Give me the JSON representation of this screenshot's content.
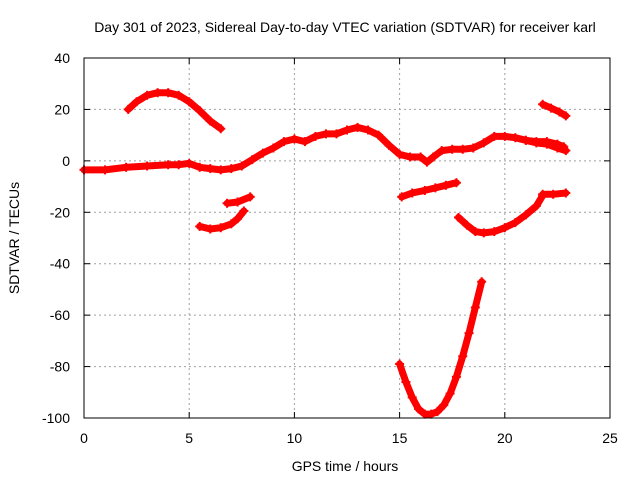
{
  "chart_data": {
    "type": "line",
    "title": "Day 301 of 2023, Sidereal Day-to-day VTEC variation (SDTVAR) for receiver karl",
    "xlabel": "GPS time / hours",
    "ylabel": "SDTVAR / TECUs",
    "xlim": [
      0,
      25
    ],
    "ylim": [
      -100,
      40
    ],
    "xticks": [
      0,
      5,
      10,
      15,
      20,
      25
    ],
    "yticks": [
      -100,
      -80,
      -60,
      -40,
      -20,
      0,
      20,
      40
    ],
    "grid": true,
    "legend": "none",
    "series_color": "#ff0000",
    "series": [
      {
        "x": [
          2.1,
          2.5,
          3.0,
          3.5,
          4.0,
          4.5,
          5.0,
          5.5,
          6.0,
          6.5
        ],
        "y": [
          20,
          23,
          25.5,
          26.5,
          26.5,
          25.5,
          23,
          19.5,
          15.5,
          12.5
        ]
      },
      {
        "x": [
          0,
          1,
          2,
          3,
          4,
          4.5,
          5,
          5.5,
          6,
          6.5,
          7,
          7.5,
          8,
          8.5,
          9,
          9.5,
          10,
          10.5,
          11,
          11.5,
          12,
          12.5,
          13,
          13.5,
          14,
          14.5,
          15,
          15.5,
          16,
          16.3,
          16.6,
          17,
          17.5,
          18,
          18.5,
          19,
          19.5,
          20,
          20.5,
          21,
          21.5,
          22,
          22.5,
          22.8
        ],
        "y": [
          -3.5,
          -3.5,
          -2.5,
          -2,
          -1.5,
          -1.5,
          -1,
          -2.5,
          -3,
          -3.5,
          -3,
          -2,
          0.5,
          3,
          5,
          7.5,
          8.5,
          7.5,
          9.5,
          10.5,
          10.5,
          12,
          13,
          12,
          10,
          6,
          2.5,
          1.5,
          1.5,
          -0.5,
          1.5,
          4,
          4.5,
          4.5,
          5,
          7,
          9.5,
          9.5,
          9,
          8,
          7.5,
          7.5,
          6.5,
          5.5
        ]
      },
      {
        "x": [
          21.8,
          22.2,
          22.6,
          22.9
        ],
        "y": [
          22,
          20.5,
          19,
          17.5
        ]
      },
      {
        "x": [
          21.0,
          21.5,
          22.0,
          22.5,
          22.9
        ],
        "y": [
          8,
          7,
          6.5,
          5,
          4
        ]
      },
      {
        "x": [
          5.5,
          6.0,
          6.5,
          7.0,
          7.3,
          7.6
        ],
        "y": [
          -25.5,
          -26.5,
          -26,
          -24.5,
          -22.5,
          -19.5
        ]
      },
      {
        "x": [
          6.8,
          7.3,
          7.9
        ],
        "y": [
          -16.5,
          -16,
          -14
        ]
      },
      {
        "x": [
          15.1,
          15.6,
          16.2,
          16.7,
          17.2,
          17.7
        ],
        "y": [
          -14,
          -12.5,
          -11.5,
          -10.5,
          -9.5,
          -8.5
        ]
      },
      {
        "x": [
          17.8,
          18.2,
          18.6,
          19.0,
          19.5,
          20.0,
          20.5,
          21.0,
          21.5,
          21.8
        ],
        "y": [
          -22,
          -25,
          -27.5,
          -28,
          -27.5,
          -26,
          -24,
          -21,
          -17.5,
          -13.5
        ]
      },
      {
        "x": [
          21.8,
          22.3,
          22.9
        ],
        "y": [
          -13,
          -13,
          -12.5
        ]
      },
      {
        "x": [
          15.0,
          15.3,
          15.6,
          15.9,
          16.2,
          16.5,
          16.8,
          17.1,
          17.4,
          17.7,
          18.0,
          18.3,
          18.6,
          18.9
        ],
        "y": [
          -79,
          -86,
          -92,
          -96.5,
          -98.5,
          -98.5,
          -97.5,
          -95,
          -90.5,
          -84,
          -76,
          -67,
          -57,
          -47
        ]
      }
    ]
  }
}
